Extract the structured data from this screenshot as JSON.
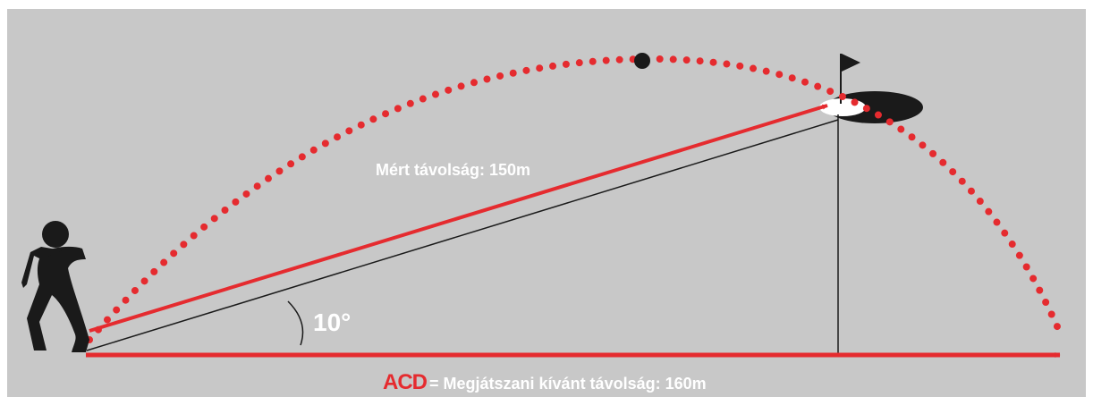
{
  "labels": {
    "measured": "Mért távolság: 150m",
    "angle": "10°",
    "acd_logo": "ACD",
    "desired": "= Megjátszani kívánt távolság: 160m"
  }
}
